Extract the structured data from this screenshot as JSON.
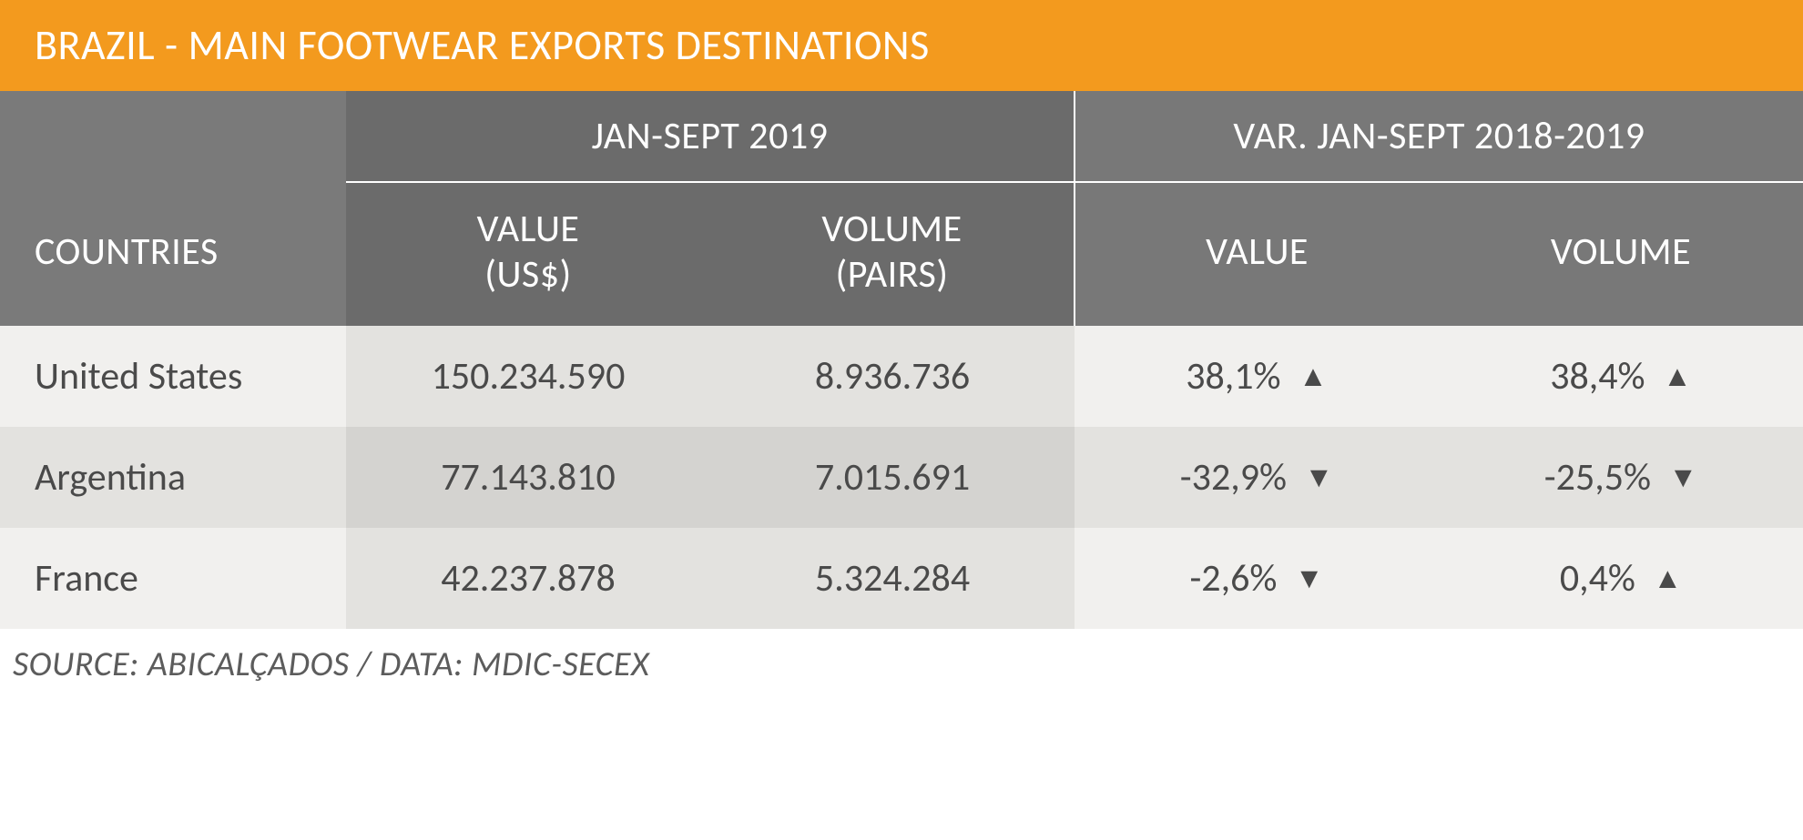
{
  "title": "BRAZIL - MAIN FOOTWEAR EXPORTS DESTINATIONS",
  "header": {
    "period": "JAN-SEPT 2019",
    "var_period": "VAR. JAN-SEPT 2018-2019",
    "countries": "COUNTRIES",
    "value_usd": "VALUE (US$)",
    "volume_pairs": "VOLUME (PAIRS)",
    "value": "VALUE",
    "volume": "VOLUME"
  },
  "rows": [
    {
      "country": "United States",
      "value": "150.234.590",
      "volume": "8.936.736",
      "var_value": "38,1%",
      "var_value_dir": "up",
      "var_volume": "38,4%",
      "var_volume_dir": "up"
    },
    {
      "country": "Argentina",
      "value": "77.143.810",
      "volume": "7.015.691",
      "var_value": "-32,9%",
      "var_value_dir": "down",
      "var_volume": "-25,5%",
      "var_volume_dir": "down"
    },
    {
      "country": "France",
      "value": "42.237.878",
      "volume": "5.324.284",
      "var_value": "-2,6%",
      "var_value_dir": "down",
      "var_volume": "0,4%",
      "var_volume_dir": "up"
    }
  ],
  "source": "SOURCE: ABICALÇADOS / DATA: MDIC-SECEX",
  "colors": {
    "title_bg": "#f39a1e",
    "header_dark": "#6b6b6b",
    "header_light": "#787878",
    "header_mid": "#7a7a7a",
    "row_odd": "#f1f0ee",
    "row_odd_shade": "#e3e2df",
    "row_even": "#e3e2df",
    "row_even_shade": "#d4d3d0",
    "text": "#4a4a4a",
    "arrow": "#4a4a4a"
  },
  "glyphs": {
    "up": "▲",
    "down": "▼"
  }
}
